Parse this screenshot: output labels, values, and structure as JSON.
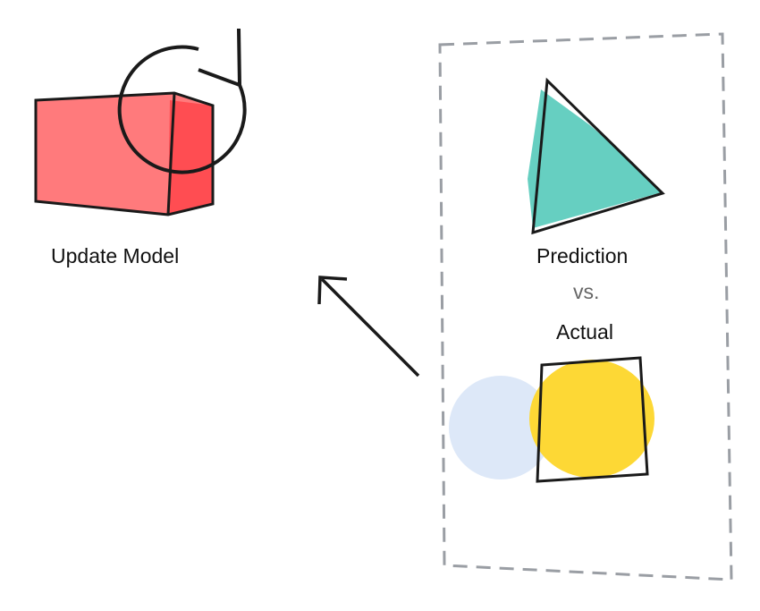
{
  "labels": {
    "update_model": "Update Model",
    "prediction": "Prediction",
    "vs": "vs.",
    "actual": "Actual"
  },
  "colors": {
    "model": "#ff6b6e",
    "prediction": "#66cfc1",
    "actual": "#fdd835",
    "shadow": "#dde8f8",
    "frame": "#9a9ea4",
    "stroke": "#1a1a1a"
  },
  "icons": [
    "box-icon",
    "refresh-icon",
    "triangle-icon",
    "square-icon",
    "arrow-icon"
  ]
}
